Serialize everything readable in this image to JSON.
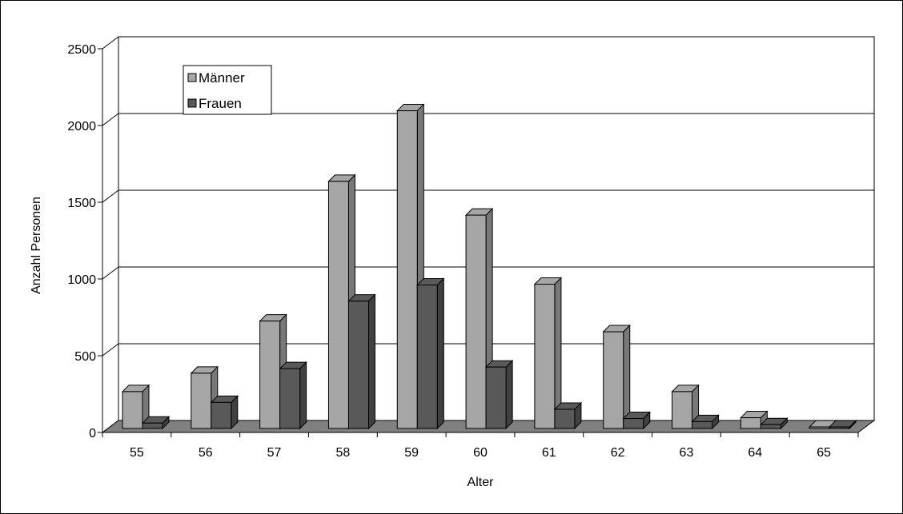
{
  "chart_data": {
    "type": "bar",
    "style": "3d-clustered-column",
    "xlabel": "Alter",
    "ylabel": "Anzahl Personen",
    "categories": [
      "55",
      "56",
      "57",
      "58",
      "59",
      "60",
      "61",
      "62",
      "63",
      "64",
      "65"
    ],
    "ylim": [
      0,
      2500
    ],
    "yticks": [
      "0",
      "500",
      "1000",
      "1500",
      "2000",
      "2500"
    ],
    "grid": true,
    "legend_position": "top-left",
    "series": [
      {
        "name": "Männer",
        "color": "#a6a6a6",
        "values": [
          240,
          360,
          700,
          1610,
          2070,
          1390,
          940,
          630,
          240,
          70,
          10
        ]
      },
      {
        "name": "Frauen",
        "color": "#595959",
        "values": [
          35,
          170,
          390,
          830,
          935,
          400,
          125,
          65,
          45,
          25,
          10
        ]
      }
    ]
  }
}
